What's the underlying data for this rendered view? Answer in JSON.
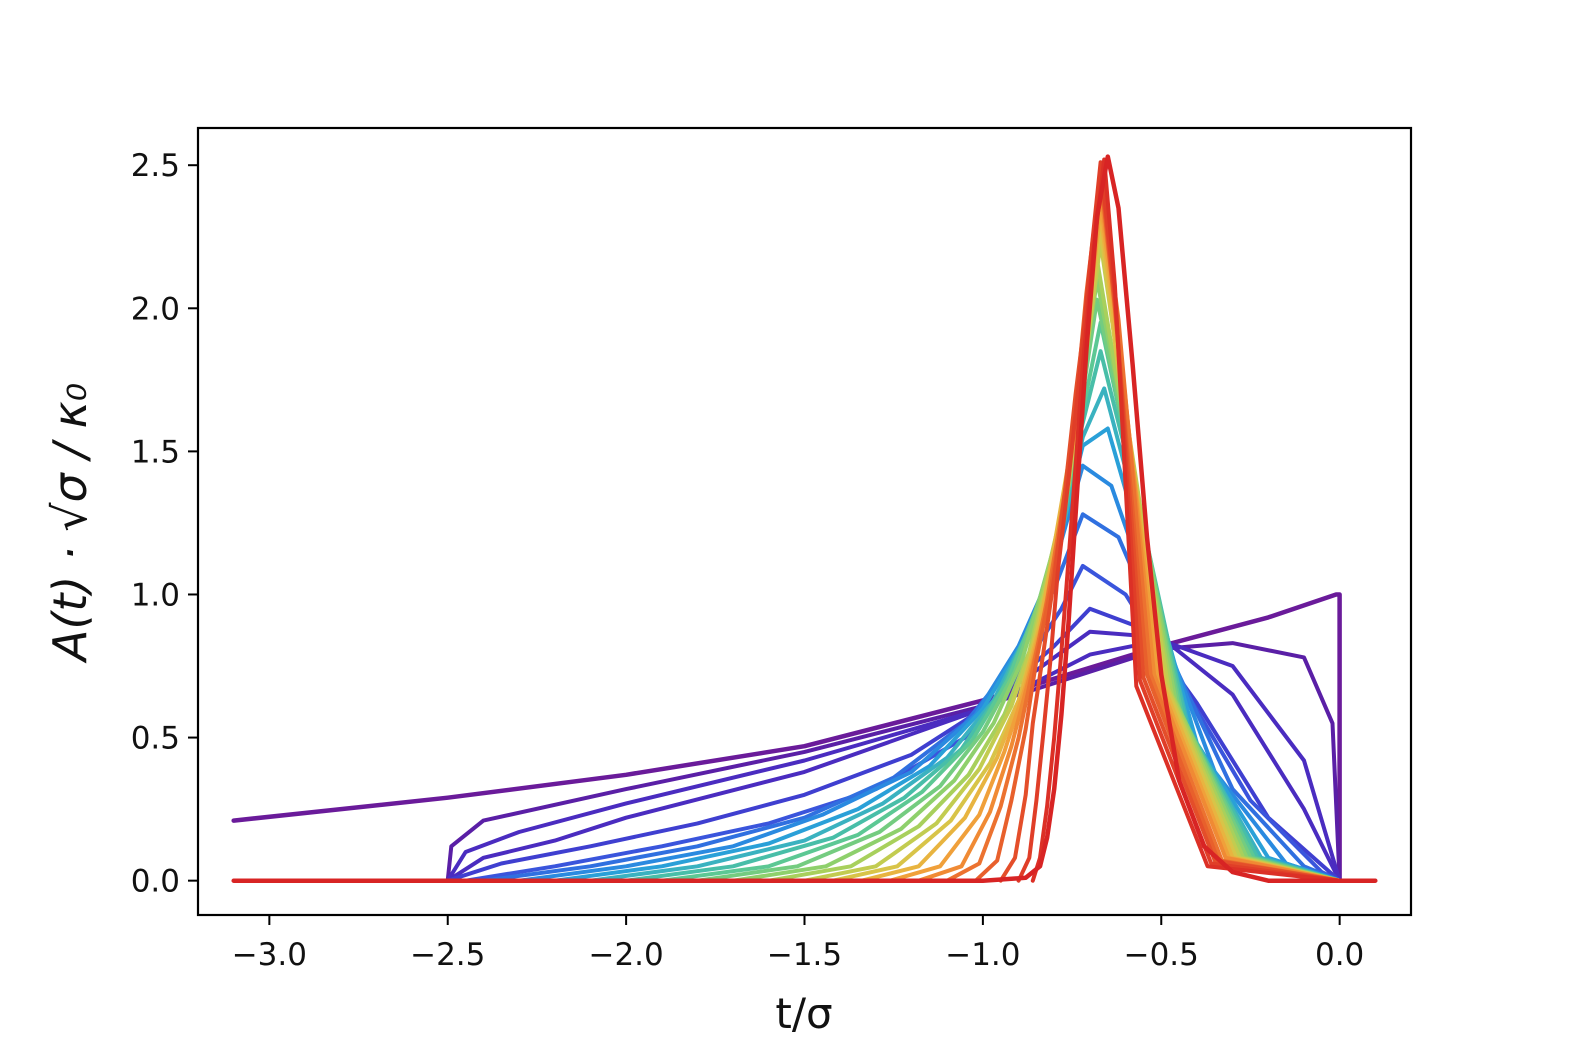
{
  "chart_data": {
    "type": "line",
    "title": "",
    "xlabel": "t/σ",
    "ylabel": "A(t) · √σ / κ₀",
    "xlim": [
      -3.2,
      0.2
    ],
    "ylim": [
      -0.12,
      2.63
    ],
    "xticks": [
      -3.0,
      -2.5,
      -2.0,
      -1.5,
      -1.0,
      -0.5,
      0.0
    ],
    "xtick_labels": [
      "−3.0",
      "−2.5",
      "−2.0",
      "−1.5",
      "−1.0",
      "−0.5",
      "0.0"
    ],
    "yticks": [
      0.0,
      0.5,
      1.0,
      1.5,
      2.0,
      2.5
    ],
    "ytick_labels": [
      "0.0",
      "0.5",
      "1.0",
      "1.5",
      "2.0",
      "2.5"
    ],
    "grid": false,
    "legend": "none",
    "colormap": "rainbow (purple → blue → green → yellow → orange → red)",
    "series_count": 26,
    "series": [
      {
        "color": "#6a1b9a",
        "x": [
          -3.1,
          -2.5,
          -2.0,
          -1.5,
          -1.0,
          -0.5,
          -0.2,
          -0.01,
          0.0,
          0.0
        ],
        "y": [
          0.21,
          0.29,
          0.37,
          0.47,
          0.63,
          0.82,
          0.92,
          1.0,
          1.0,
          0.0
        ]
      },
      {
        "color": "#5a1fa6",
        "x": [
          -2.5,
          -2.49,
          -2.4,
          -2.0,
          -1.5,
          -1.0,
          -0.7,
          -0.5,
          -0.3,
          -0.1,
          -0.02,
          0.0
        ],
        "y": [
          0.0,
          0.12,
          0.21,
          0.32,
          0.45,
          0.61,
          0.73,
          0.81,
          0.83,
          0.78,
          0.55,
          0.0
        ]
      },
      {
        "color": "#4a2cc0",
        "x": [
          -2.5,
          -2.45,
          -2.3,
          -2.0,
          -1.5,
          -1.0,
          -0.7,
          -0.5,
          -0.3,
          -0.1,
          0.0
        ],
        "y": [
          0.0,
          0.1,
          0.17,
          0.27,
          0.42,
          0.6,
          0.79,
          0.84,
          0.75,
          0.42,
          0.0
        ]
      },
      {
        "color": "#4a2cc0",
        "x": [
          -2.5,
          -2.4,
          -2.2,
          -2.0,
          -1.5,
          -1.0,
          -0.7,
          -0.5,
          -0.3,
          -0.1,
          0.0
        ],
        "y": [
          0.0,
          0.08,
          0.14,
          0.22,
          0.38,
          0.6,
          0.87,
          0.85,
          0.65,
          0.25,
          0.0
        ]
      },
      {
        "color": "#3f3fd0",
        "x": [
          -2.5,
          -2.35,
          -2.1,
          -1.8,
          -1.5,
          -1.2,
          -1.0,
          -0.8,
          -0.7,
          -0.55,
          -0.4,
          -0.2,
          0.0
        ],
        "y": [
          0.0,
          0.06,
          0.12,
          0.2,
          0.3,
          0.44,
          0.6,
          0.82,
          0.95,
          0.88,
          0.62,
          0.22,
          0.0
        ]
      },
      {
        "color": "#3a55dc",
        "x": [
          -2.45,
          -2.2,
          -1.9,
          -1.6,
          -1.3,
          -1.05,
          -0.9,
          -0.78,
          -0.72,
          -0.6,
          -0.45,
          -0.25,
          -0.05,
          0.0
        ],
        "y": [
          0.0,
          0.05,
          0.12,
          0.2,
          0.32,
          0.5,
          0.72,
          0.95,
          1.1,
          1.0,
          0.7,
          0.28,
          0.03,
          0.0
        ]
      },
      {
        "color": "#3070e0",
        "x": [
          -2.4,
          -2.1,
          -1.8,
          -1.5,
          -1.25,
          -1.05,
          -0.9,
          -0.8,
          -0.72,
          -0.62,
          -0.5,
          -0.3,
          -0.1,
          0.0
        ],
        "y": [
          0.0,
          0.05,
          0.12,
          0.22,
          0.36,
          0.55,
          0.78,
          1.02,
          1.28,
          1.2,
          0.85,
          0.32,
          0.05,
          0.0
        ]
      },
      {
        "color": "#2a8ae0",
        "x": [
          -2.3,
          -2.0,
          -1.7,
          -1.45,
          -1.2,
          -1.02,
          -0.9,
          -0.8,
          -0.72,
          -0.64,
          -0.52,
          -0.35,
          -0.15,
          0.0
        ],
        "y": [
          0.0,
          0.05,
          0.12,
          0.23,
          0.38,
          0.58,
          0.82,
          1.1,
          1.45,
          1.38,
          0.95,
          0.38,
          0.06,
          0.0
        ]
      },
      {
        "color": "#2aa0d8",
        "x": [
          -2.2,
          -1.9,
          -1.6,
          -1.35,
          -1.15,
          -1.0,
          -0.88,
          -0.8,
          -0.72,
          -0.65,
          -0.55,
          -0.4,
          -0.2,
          0.0
        ],
        "y": [
          0.0,
          0.05,
          0.13,
          0.25,
          0.4,
          0.6,
          0.85,
          1.12,
          1.52,
          1.58,
          1.15,
          0.48,
          0.08,
          0.0
        ]
      },
      {
        "color": "#3ab2c0",
        "x": [
          -2.1,
          -1.8,
          -1.5,
          -1.28,
          -1.1,
          -0.97,
          -0.87,
          -0.79,
          -0.72,
          -0.66,
          -0.56,
          -0.42,
          -0.22,
          0.0
        ],
        "y": [
          0.0,
          0.05,
          0.14,
          0.27,
          0.43,
          0.63,
          0.88,
          1.15,
          1.55,
          1.72,
          1.25,
          0.52,
          0.08,
          0.0
        ]
      },
      {
        "color": "#48bea8",
        "x": [
          -2.0,
          -1.7,
          -1.42,
          -1.22,
          -1.06,
          -0.95,
          -0.86,
          -0.79,
          -0.73,
          -0.67,
          -0.57,
          -0.43,
          -0.23,
          0.0
        ],
        "y": [
          0.0,
          0.05,
          0.15,
          0.29,
          0.46,
          0.66,
          0.91,
          1.18,
          1.55,
          1.85,
          1.35,
          0.55,
          0.08,
          0.0
        ]
      },
      {
        "color": "#5cc894",
        "x": [
          -1.9,
          -1.6,
          -1.35,
          -1.17,
          -1.03,
          -0.93,
          -0.85,
          -0.78,
          -0.73,
          -0.67,
          -0.58,
          -0.44,
          -0.24,
          0.0
        ],
        "y": [
          0.0,
          0.05,
          0.16,
          0.31,
          0.49,
          0.7,
          0.95,
          1.22,
          1.58,
          1.95,
          1.42,
          0.57,
          0.08,
          0.0
        ]
      },
      {
        "color": "#74cc80",
        "x": [
          -1.8,
          -1.52,
          -1.29,
          -1.12,
          -1.0,
          -0.91,
          -0.84,
          -0.78,
          -0.73,
          -0.68,
          -0.59,
          -0.45,
          -0.25,
          0.0
        ],
        "y": [
          0.0,
          0.05,
          0.17,
          0.33,
          0.52,
          0.73,
          0.99,
          1.26,
          1.62,
          2.03,
          1.5,
          0.6,
          0.08,
          0.0
        ]
      },
      {
        "color": "#8ed06c",
        "x": [
          -1.7,
          -1.44,
          -1.23,
          -1.08,
          -0.97,
          -0.89,
          -0.83,
          -0.77,
          -0.73,
          -0.68,
          -0.6,
          -0.46,
          -0.26,
          0.0
        ],
        "y": [
          0.0,
          0.05,
          0.18,
          0.35,
          0.55,
          0.77,
          1.03,
          1.3,
          1.66,
          2.1,
          1.58,
          0.63,
          0.08,
          0.0
        ]
      },
      {
        "color": "#a8d05c",
        "x": [
          -1.6,
          -1.37,
          -1.18,
          -1.04,
          -0.94,
          -0.87,
          -0.82,
          -0.77,
          -0.73,
          -0.68,
          -0.61,
          -0.47,
          -0.27,
          0.0
        ],
        "y": [
          0.0,
          0.05,
          0.19,
          0.37,
          0.58,
          0.8,
          1.07,
          1.34,
          1.7,
          2.17,
          1.65,
          0.65,
          0.08,
          0.0
        ]
      },
      {
        "color": "#c2cc50",
        "x": [
          -1.5,
          -1.3,
          -1.13,
          -1.01,
          -0.92,
          -0.86,
          -0.81,
          -0.76,
          -0.72,
          -0.67,
          -0.61,
          -0.48,
          -0.28,
          0.0
        ],
        "y": [
          0.0,
          0.05,
          0.2,
          0.39,
          0.61,
          0.83,
          1.1,
          1.38,
          1.75,
          2.23,
          1.72,
          0.67,
          0.08,
          0.0
        ]
      },
      {
        "color": "#d8c448",
        "x": [
          -1.42,
          -1.24,
          -1.09,
          -0.98,
          -0.9,
          -0.85,
          -0.8,
          -0.76,
          -0.72,
          -0.67,
          -0.62,
          -0.49,
          -0.29,
          0.0
        ],
        "y": [
          0.0,
          0.05,
          0.21,
          0.41,
          0.63,
          0.86,
          1.13,
          1.42,
          1.8,
          2.28,
          1.78,
          0.69,
          0.08,
          0.0
        ]
      },
      {
        "color": "#e8b440",
        "x": [
          -1.34,
          -1.18,
          -1.05,
          -0.96,
          -0.89,
          -0.84,
          -0.8,
          -0.76,
          -0.72,
          -0.67,
          -0.62,
          -0.5,
          -0.3,
          0.0
        ],
        "y": [
          0.0,
          0.05,
          0.22,
          0.43,
          0.66,
          0.89,
          1.17,
          1.46,
          1.85,
          2.33,
          1.83,
          0.7,
          0.08,
          0.0
        ]
      },
      {
        "color": "#f0a03a",
        "x": [
          -1.26,
          -1.12,
          -1.01,
          -0.94,
          -0.88,
          -0.83,
          -0.79,
          -0.75,
          -0.71,
          -0.67,
          -0.62,
          -0.51,
          -0.31,
          0.0
        ],
        "y": [
          0.0,
          0.05,
          0.23,
          0.45,
          0.68,
          0.92,
          1.2,
          1.5,
          1.9,
          2.37,
          1.88,
          0.71,
          0.08,
          0.0
        ]
      },
      {
        "color": "#f08a34",
        "x": [
          -1.18,
          -1.06,
          -0.98,
          -0.92,
          -0.87,
          -0.82,
          -0.78,
          -0.75,
          -0.71,
          -0.67,
          -0.62,
          -0.52,
          -0.32,
          0.0
        ],
        "y": [
          0.0,
          0.05,
          0.24,
          0.47,
          0.71,
          0.95,
          1.24,
          1.55,
          1.95,
          2.41,
          1.92,
          0.72,
          0.08,
          0.0
        ]
      },
      {
        "color": "#ec7230",
        "x": [
          -1.1,
          -1.01,
          -0.95,
          -0.9,
          -0.86,
          -0.82,
          -0.78,
          -0.74,
          -0.71,
          -0.67,
          -0.62,
          -0.53,
          -0.33,
          0.0
        ],
        "y": [
          0.0,
          0.06,
          0.26,
          0.5,
          0.74,
          0.98,
          1.28,
          1.6,
          2.0,
          2.44,
          1.96,
          0.72,
          0.07,
          0.0
        ]
      },
      {
        "color": "#e8602c",
        "x": [
          -1.02,
          -0.96,
          -0.92,
          -0.88,
          -0.85,
          -0.81,
          -0.77,
          -0.74,
          -0.71,
          -0.67,
          -0.63,
          -0.54,
          -0.34,
          0.0
        ],
        "y": [
          0.0,
          0.07,
          0.28,
          0.53,
          0.77,
          1.02,
          1.32,
          1.65,
          2.05,
          2.47,
          2.0,
          0.72,
          0.07,
          0.0
        ]
      },
      {
        "color": "#e44e2a",
        "x": [
          -0.95,
          -0.91,
          -0.88,
          -0.86,
          -0.83,
          -0.8,
          -0.77,
          -0.74,
          -0.7,
          -0.67,
          -0.63,
          -0.55,
          -0.35,
          0.0
        ],
        "y": [
          0.0,
          0.08,
          0.3,
          0.55,
          0.8,
          1.06,
          1.36,
          1.7,
          2.1,
          2.49,
          2.03,
          0.71,
          0.07,
          0.0
        ]
      },
      {
        "color": "#e03e28",
        "x": [
          -0.9,
          -0.87,
          -0.85,
          -0.83,
          -0.81,
          -0.79,
          -0.76,
          -0.73,
          -0.7,
          -0.67,
          -0.63,
          -0.56,
          -0.36,
          0.0
        ],
        "y": [
          0.0,
          0.08,
          0.28,
          0.52,
          0.78,
          1.08,
          1.4,
          1.75,
          2.15,
          2.51,
          2.05,
          0.7,
          0.06,
          0.0
        ]
      },
      {
        "color": "#dc3026",
        "x": [
          -0.86,
          -0.84,
          -0.82,
          -0.8,
          -0.78,
          -0.76,
          -0.74,
          -0.72,
          -0.69,
          -0.66,
          -0.63,
          -0.57,
          -0.37,
          0.0
        ],
        "y": [
          0.0,
          0.08,
          0.26,
          0.5,
          0.8,
          1.12,
          1.45,
          1.8,
          2.2,
          2.52,
          2.08,
          0.68,
          0.05,
          0.0
        ]
      },
      {
        "color": "#d82424",
        "x": [
          -3.1,
          -1.0,
          -0.88,
          -0.84,
          -0.82,
          -0.8,
          -0.78,
          -0.76,
          -0.74,
          -0.71,
          -0.68,
          -0.65,
          -0.62,
          -0.58,
          -0.54,
          -0.5,
          -0.45,
          -0.38,
          -0.3,
          -0.2,
          0.0,
          0.1
        ],
        "y": [
          0.0,
          0.0,
          0.01,
          0.05,
          0.15,
          0.32,
          0.58,
          0.9,
          1.28,
          1.85,
          2.32,
          2.53,
          2.35,
          1.8,
          1.2,
          0.72,
          0.35,
          0.12,
          0.03,
          0.0,
          0.0,
          0.0
        ]
      }
    ]
  }
}
